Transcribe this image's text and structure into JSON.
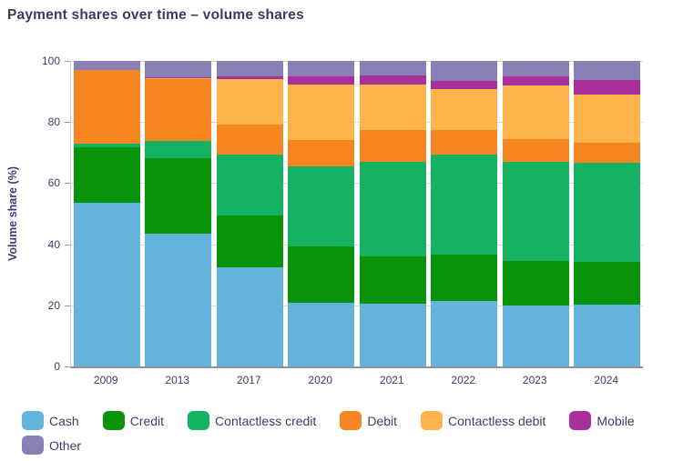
{
  "title": "Payment shares over time – volume shares",
  "colors": {
    "title_text": "#3a3a60",
    "axis_text": "#3e3e66",
    "gridline": "#d9d9de",
    "axis_line": "#8f8fa6",
    "background": "#ffffff"
  },
  "chart_data": {
    "type": "bar",
    "stacked": true,
    "title": "Payment shares over time – volume shares",
    "xlabel": "",
    "ylabel": "Volume share (%)",
    "ylim": [
      0,
      100
    ],
    "yticks": [
      0,
      20,
      40,
      60,
      80,
      100
    ],
    "grid": true,
    "legend_position": "bottom",
    "categories": [
      "2009",
      "2013",
      "2017",
      "2020",
      "2021",
      "2022",
      "2023",
      "2024"
    ],
    "series": [
      {
        "name": "Cash",
        "color": "#63b3db",
        "values": [
          53.5,
          43.4,
          32.4,
          20.9,
          20.5,
          21.4,
          19.8,
          20.3
        ]
      },
      {
        "name": "Credit",
        "color": "#099309",
        "values": [
          18.2,
          24.7,
          17.1,
          18.4,
          15.6,
          15.2,
          14.8,
          13.9
        ]
      },
      {
        "name": "Contactless credit",
        "color": "#16b264",
        "values": [
          1.2,
          5.8,
          19.9,
          26.1,
          30.8,
          32.8,
          32.5,
          32.4
        ]
      },
      {
        "name": "Debit",
        "color": "#f6861f",
        "values": [
          24.0,
          20.1,
          9.9,
          8.7,
          10.5,
          8.0,
          7.3,
          6.5
        ]
      },
      {
        "name": "Contactless debit",
        "color": "#fdb44d",
        "values": [
          0.0,
          0.4,
          14.8,
          18.1,
          14.8,
          13.4,
          17.6,
          15.9
        ]
      },
      {
        "name": "Mobile",
        "color": "#a92f9a",
        "values": [
          0.0,
          0.2,
          0.8,
          2.7,
          3.0,
          2.6,
          2.9,
          4.7
        ]
      },
      {
        "name": "Other",
        "color": "#8981b5",
        "values": [
          3.1,
          5.4,
          5.1,
          5.1,
          4.8,
          6.6,
          5.1,
          6.3
        ]
      }
    ]
  }
}
